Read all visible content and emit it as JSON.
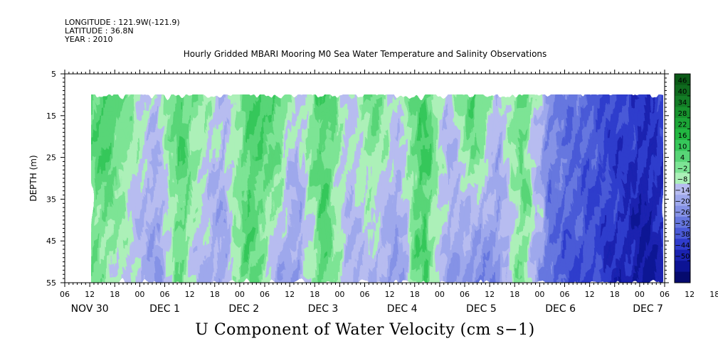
{
  "header": {
    "longitude": "LONGITUDE : 121.9W(-121.9)",
    "latitude": "LATITUDE : 36.8N",
    "year": "YEAR : 2010",
    "title": "Hourly Gridded MBARI Mooring M0 Sea Water Temperature and Salinity Observations"
  },
  "chart_data": {
    "type": "heatmap",
    "title": "U Component of Water Velocity (cm s−1)",
    "ylabel": "DEPTH (m)",
    "xlabel": "",
    "ylim": [
      55,
      5
    ],
    "y_ticks": [
      5,
      15,
      25,
      35,
      45,
      55
    ],
    "data_depth_range": [
      10,
      55
    ],
    "x_hour_range": [
      0,
      144
    ],
    "data_hour_start": 6,
    "x_hour_ticks": [
      "06",
      "12",
      "18",
      "00",
      "06",
      "12",
      "18",
      "00",
      "06",
      "12",
      "18",
      "00",
      "06",
      "12",
      "18",
      "00",
      "06",
      "12",
      "18",
      "00",
      "06",
      "12",
      "18",
      "00",
      "06",
      "12",
      "18",
      "00",
      "06"
    ],
    "x_day_labels": [
      {
        "label": "NOV 30",
        "hour": 6
      },
      {
        "label": "DEC  1",
        "hour": 24
      },
      {
        "label": "DEC  2",
        "hour": 43
      },
      {
        "label": "DEC  3",
        "hour": 62
      },
      {
        "label": "DEC  4",
        "hour": 81
      },
      {
        "label": "DEC  5",
        "hour": 100
      },
      {
        "label": "DEC  6",
        "hour": 119
      },
      {
        "label": "DEC  7",
        "hour": 140
      }
    ],
    "colorbar_labels": [
      "46",
      "40",
      "34",
      "28",
      "22",
      "16",
      "10",
      "4",
      "−2",
      "−8",
      "−14",
      "−20",
      "−26",
      "−32",
      "−38",
      "−44",
      "−50"
    ],
    "colorbar_colors": [
      "#0b5a17",
      "#0f6a1e",
      "#137d26",
      "#17912d",
      "#1ca537",
      "#22b741",
      "#36c75a",
      "#58d577",
      "#7de495",
      "#acf0b8",
      "#b7bcf0",
      "#9ea8ec",
      "#8592e6",
      "#6677df",
      "#4a5ad7",
      "#2f3ccc",
      "#1a22b0",
      "#0c1394",
      "#050a6e"
    ],
    "series": [
      {
        "band_hours": [
          6,
          10,
          16,
          22,
          28,
          32,
          38,
          44,
          50,
          56,
          62,
          68,
          74,
          80,
          86,
          92,
          98,
          104,
          110,
          116,
          122,
          128,
          134,
          140,
          144
        ],
        "surface_u": [
          10,
          16,
          4,
          -4,
          14,
          6,
          -6,
          12,
          16,
          -4,
          14,
          -4,
          10,
          -2,
          16,
          -6,
          18,
          -8,
          12,
          -16,
          -20,
          -26,
          -30,
          -32,
          -30
        ],
        "bottom_u": [
          6,
          4,
          -4,
          -14,
          8,
          -6,
          -12,
          14,
          -6,
          -14,
          14,
          -8,
          -6,
          -16,
          16,
          -10,
          -18,
          -14,
          8,
          -22,
          -28,
          -30,
          -36,
          -42,
          -34
        ]
      }
    ]
  }
}
